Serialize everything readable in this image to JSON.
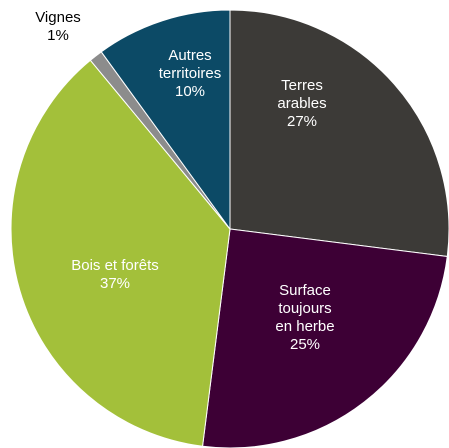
{
  "chart_data": {
    "type": "pie",
    "categories": [
      [
        "Terres",
        "arables"
      ],
      [
        "Surface",
        "toujours",
        "en herbe"
      ],
      [
        "Bois et forêts"
      ],
      [
        "Vignes"
      ],
      [
        "Autres",
        "territoires"
      ]
    ],
    "values": [
      27,
      25,
      37,
      1,
      10
    ],
    "value_labels": [
      "27%",
      "25%",
      "37%",
      "1%",
      "10%"
    ],
    "colors": [
      "#3c3a37",
      "#3d0035",
      "#a3c03a",
      "#8c8c8c",
      "#0c4a66"
    ]
  }
}
